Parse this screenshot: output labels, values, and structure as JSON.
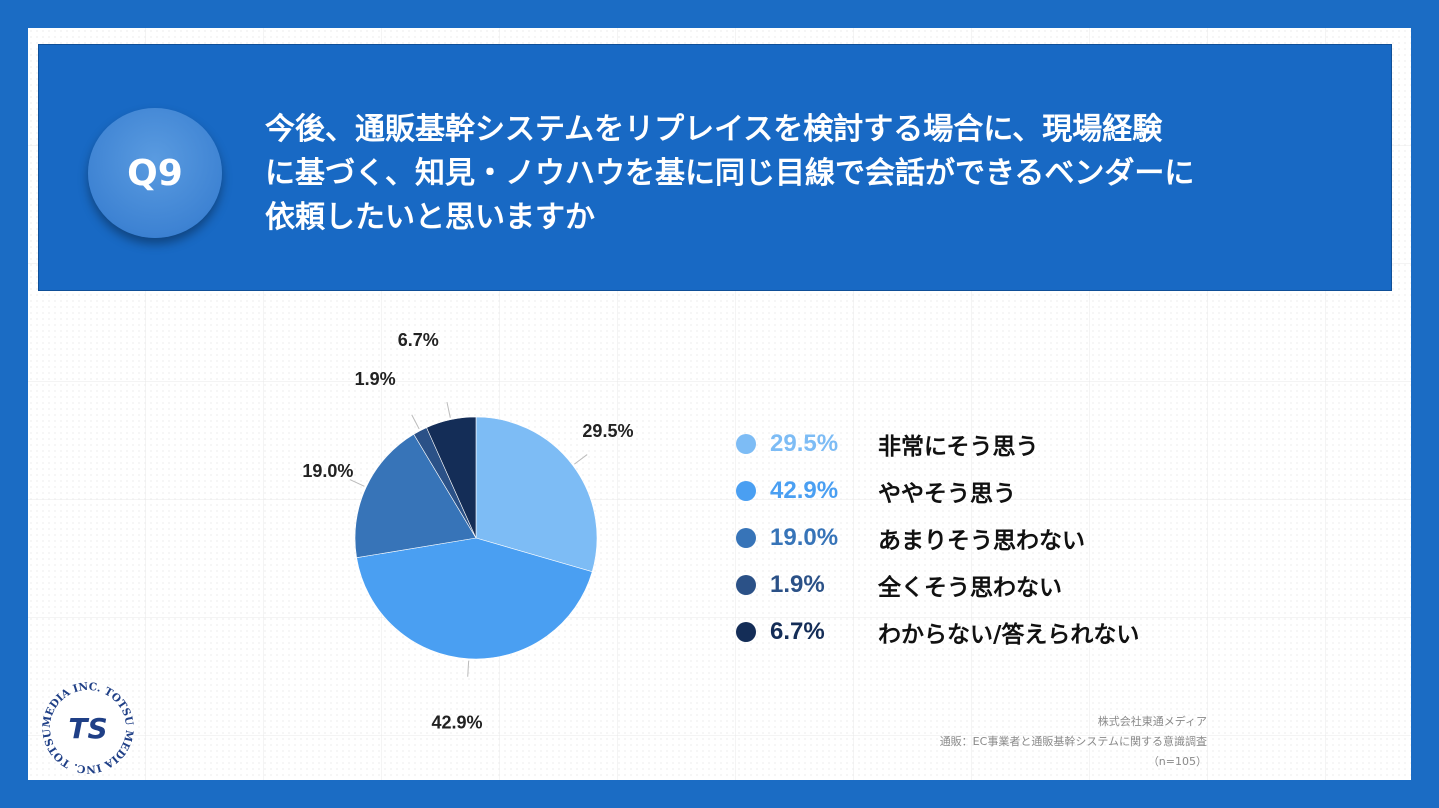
{
  "header": {
    "badge": "Q9",
    "question_lines": [
      "今後、通販基幹システムをリプレイスを検討する場合に、現場経験",
      "に基づく、知見・ノウハウを基に同じ目線で会話ができるベンダーに",
      "依頼したいと思いますか"
    ]
  },
  "chart_data": {
    "type": "pie",
    "slices": [
      {
        "label": "非常にそう思う",
        "value": 29.5,
        "display": "29.5%",
        "color": "#7dbcf5"
      },
      {
        "label": "ややそう思う",
        "value": 42.9,
        "display": "42.9%",
        "color": "#4a9ff2"
      },
      {
        "label": "あまりそう思わない",
        "value": 19.0,
        "display": "19.0%",
        "color": "#3774b8"
      },
      {
        "label": "全くそう思わない",
        "value": 1.9,
        "display": "1.9%",
        "color": "#2b5187"
      },
      {
        "label": "わからない/答えられない",
        "value": 6.7,
        "display": "6.7%",
        "color": "#142d57"
      }
    ],
    "legend_placement": "right"
  },
  "source": {
    "company": "株式会社東通メディア",
    "survey": "通販：EC事業者と通販基幹システムに関する意識調査",
    "sample": "（n=105）"
  },
  "logo": {
    "ring_text": "MEDIA INC. TOTSU MEDIA INC. TOTSU ",
    "mark": "TS"
  }
}
